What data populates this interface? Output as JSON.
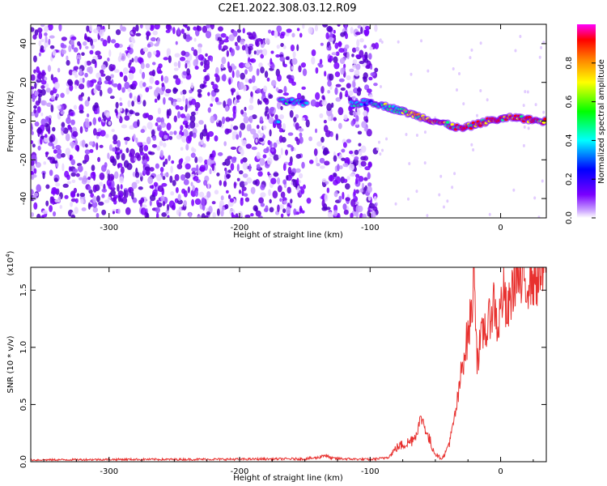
{
  "title": "C2E1.2022.308.03.12.R09",
  "chart_data": [
    {
      "type": "heatmap",
      "xlabel": "Height of straight line (km)",
      "ylabel": "Frequency (Hz)",
      "xlim": [
        -360,
        35
      ],
      "ylim": [
        -50,
        50
      ],
      "xticks": [
        -300,
        -200,
        -100,
        0
      ],
      "yticks": [
        -40,
        -20,
        0,
        20,
        40
      ],
      "xtick_labels": [
        "-300",
        "-200",
        "-100",
        "0"
      ],
      "ytick_labels": [
        "-40",
        "-20",
        "0",
        "20",
        "40"
      ],
      "colorbar": {
        "label": "Normalized spectral amplitude",
        "range": [
          0.0,
          1.0
        ],
        "ticks": [
          0.0,
          0.2,
          0.4,
          0.6,
          0.8
        ],
        "tick_labels": [
          "0.0",
          "0.2",
          "0.4",
          "0.6",
          "0.8"
        ],
        "colormap": [
          "#ffffff",
          "#7a00ff",
          "#0000ff",
          "#00ffff",
          "#00ff00",
          "#ffff00",
          "#ff8000",
          "#ff0000",
          "#ff00ff"
        ]
      },
      "noise_region_x": [
        -360,
        -95
      ],
      "signal_trace": {
        "x": [
          -170,
          -160,
          -150,
          -140,
          -130,
          -120,
          -110,
          -100,
          -90,
          -80,
          -70,
          -60,
          -50,
          -40,
          -30,
          -20,
          -10,
          0,
          10,
          20,
          30
        ],
        "y": [
          10,
          10,
          9,
          10,
          10,
          9,
          9,
          10,
          8,
          6,
          4,
          2,
          0,
          -2,
          -4,
          -2,
          0,
          1,
          2,
          1,
          0
        ]
      },
      "grid": false
    },
    {
      "type": "line",
      "xlabel": "Height of straight line (km)",
      "ylabel": "SNR (10 * v/v)",
      "scale_label": "(x10",
      "scale_exponent": "4",
      "scale_suffix": ")",
      "xlim": [
        -360,
        35
      ],
      "ylim": [
        0,
        17000
      ],
      "xticks": [
        -300,
        -200,
        -100,
        0
      ],
      "yticks": [
        0,
        5000,
        10000,
        15000
      ],
      "xtick_labels": [
        "-300",
        "-200",
        "-100",
        "0"
      ],
      "ytick_labels": [
        "0.0",
        "0.5",
        "1.0",
        "1.5"
      ],
      "series": [
        {
          "color": "#e8312f",
          "x": [
            -360,
            -300,
            -250,
            -200,
            -150,
            -140,
            -135,
            -130,
            -120,
            -110,
            -100,
            -90,
            -85,
            -80,
            -75,
            -70,
            -65,
            -62,
            -60,
            -58,
            -55,
            -52,
            -50,
            -47,
            -45,
            -42,
            -40,
            -37,
            -35,
            -32,
            -30,
            -28,
            -25,
            -22,
            -20,
            -18,
            -15,
            -12,
            -10,
            -8,
            -5,
            -2,
            0,
            2,
            5,
            8,
            10,
            12,
            15,
            18,
            20,
            22,
            25,
            28,
            30,
            33,
            35
          ],
          "y": [
            150,
            200,
            200,
            220,
            250,
            350,
            600,
            300,
            250,
            220,
            200,
            300,
            500,
            1200,
            1500,
            1700,
            2300,
            3500,
            3800,
            3000,
            2000,
            1200,
            700,
            400,
            300,
            800,
            1500,
            2800,
            4000,
            6000,
            8000,
            9500,
            11000,
            13500,
            17000,
            9000,
            10500,
            12000,
            11000,
            13000,
            14000,
            11500,
            13500,
            15000,
            12500,
            14500,
            15500,
            17000,
            15000,
            16000,
            15500,
            16500,
            16000,
            16200,
            16300,
            16500,
            16600
          ]
        }
      ],
      "grid": false
    }
  ]
}
